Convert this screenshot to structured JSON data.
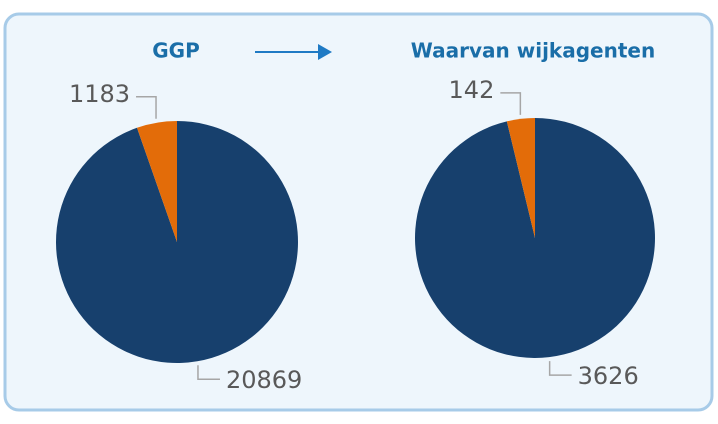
{
  "chart_data": [
    {
      "type": "pie",
      "title": "GGP",
      "values": [
        20869,
        1183
      ],
      "colors": [
        "#17406d",
        "#e36c09"
      ]
    },
    {
      "type": "pie",
      "title": "Waarvan wijkagenten",
      "values": [
        3626,
        142
      ],
      "colors": [
        "#17406d",
        "#e36c09"
      ]
    }
  ]
}
